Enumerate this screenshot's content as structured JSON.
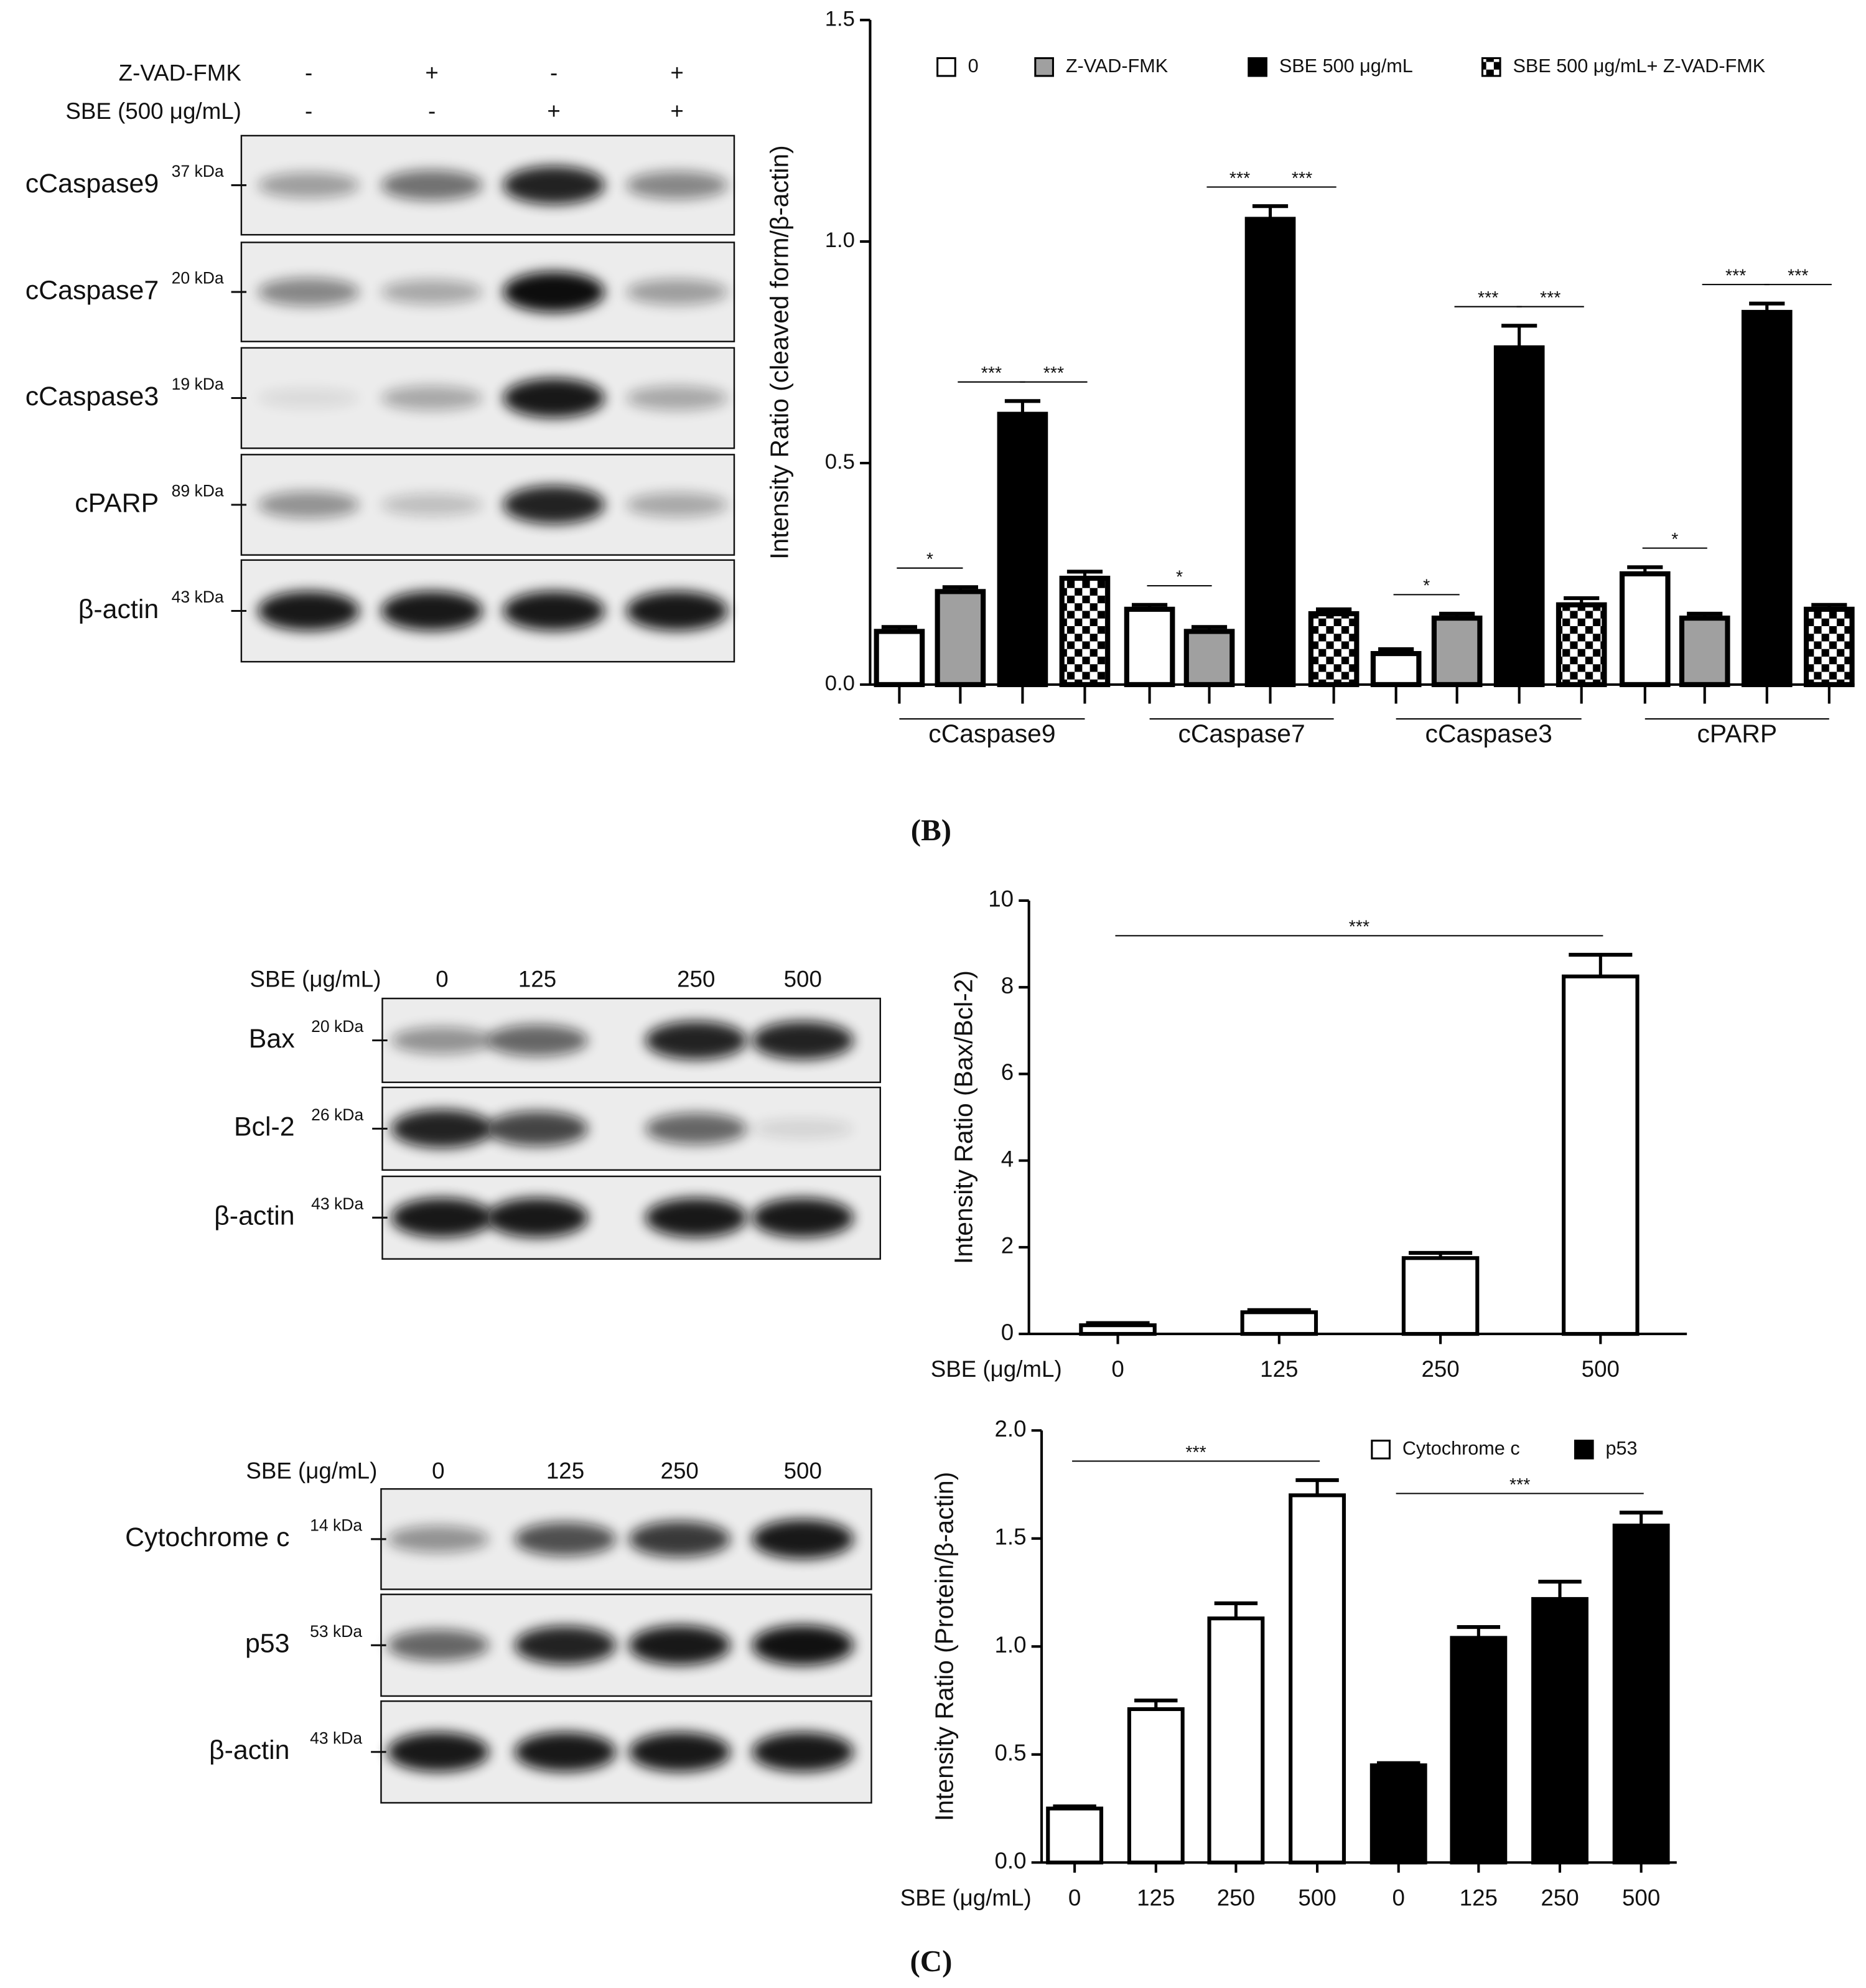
{
  "chart_data": [
    {
      "type": "bar",
      "ylabel": "Intensity Ratio (cleaved form/β-actin)",
      "categories": [
        "cCaspase9",
        "cCaspase7",
        "cCaspase3",
        "cPARP"
      ],
      "series": [
        {
          "name": "0",
          "color": "#ffffff",
          "values": [
            0.12,
            0.17,
            0.07,
            0.25
          ],
          "errors": [
            0.01,
            0.01,
            0.01,
            0.015
          ]
        },
        {
          "name": "Z-VAD-FMK",
          "color": "#a0a0a0",
          "values": [
            0.21,
            0.12,
            0.15,
            0.15
          ],
          "errors": [
            0.01,
            0.01,
            0.01,
            0.01
          ]
        },
        {
          "name": "SBE 500 μg/mL",
          "color": "#000000",
          "values": [
            0.61,
            1.05,
            0.76,
            0.84
          ],
          "errors": [
            0.03,
            0.03,
            0.05,
            0.02
          ]
        },
        {
          "name": "SBE 500 μg/mL+ Z-VAD-FMK",
          "color": "#000000",
          "hatch": "checkerboard",
          "values": [
            0.24,
            0.16,
            0.18,
            0.17
          ],
          "errors": [
            0.015,
            0.01,
            0.015,
            0.01
          ]
        }
      ],
      "ylim": [
        0,
        1.5
      ],
      "yticks": [
        {
          "value": 0,
          "label": "0.0"
        },
        {
          "value": 0.5,
          "label": "0.5"
        },
        {
          "value": 1,
          "label": "1.0"
        },
        {
          "value": 1.5,
          "label": "1.5"
        }
      ],
      "legend": "top",
      "annotations": [
        {
          "text": "*",
          "category": "cCaspase9",
          "series": [
            "0",
            "Z-VAD-FMK"
          ]
        },
        {
          "text": "***",
          "category": "cCaspase9",
          "series": [
            "Z-VAD-FMK",
            "SBE 500 μg/mL"
          ]
        },
        {
          "text": "***",
          "category": "cCaspase9",
          "series": [
            "SBE 500 μg/mL",
            "SBE 500 μg/mL+ Z-VAD-FMK"
          ]
        },
        {
          "text": "*",
          "category": "cCaspase7",
          "series": [
            "0",
            "Z-VAD-FMK"
          ]
        },
        {
          "text": "***",
          "category": "cCaspase7",
          "series": [
            "Z-VAD-FMK",
            "SBE 500 μg/mL"
          ]
        },
        {
          "text": "***",
          "category": "cCaspase7",
          "series": [
            "SBE 500 μg/mL",
            "SBE 500 μg/mL+ Z-VAD-FMK"
          ]
        },
        {
          "text": "*",
          "category": "cCaspase3",
          "series": [
            "0",
            "Z-VAD-FMK"
          ]
        },
        {
          "text": "***",
          "category": "cCaspase3",
          "series": [
            "Z-VAD-FMK",
            "SBE 500 μg/mL"
          ]
        },
        {
          "text": "***",
          "category": "cCaspase3",
          "series": [
            "SBE 500 μg/mL",
            "SBE 500 μg/mL+ Z-VAD-FMK"
          ]
        },
        {
          "text": "*",
          "category": "cPARP",
          "series": [
            "0",
            "Z-VAD-FMK"
          ]
        },
        {
          "text": "***",
          "category": "cPARP",
          "series": [
            "Z-VAD-FMK",
            "SBE 500 μg/mL"
          ]
        },
        {
          "text": "***",
          "category": "cPARP",
          "series": [
            "SBE 500 μg/mL",
            "SBE 500 μg/mL+ Z-VAD-FMK"
          ]
        }
      ]
    },
    {
      "type": "bar",
      "ylabel": "Intensity Ratio (Bax/Bcl-2)",
      "xlabel": "SBE (μg/mL)",
      "categories": [
        "0",
        "125",
        "250",
        "500"
      ],
      "values": [
        0.2,
        0.5,
        1.75,
        8.25
      ],
      "errors": [
        0.05,
        0.05,
        0.12,
        0.5
      ],
      "color": "#ffffff",
      "ylim": [
        0,
        10
      ],
      "yticks": [
        0,
        2,
        4,
        6,
        8,
        10
      ],
      "annotations": [
        {
          "text": "***",
          "categories": [
            "0",
            "500"
          ]
        }
      ]
    },
    {
      "type": "bar",
      "ylabel": "Intensity Ratio (Protein/β-actin)",
      "xlabel": "SBE (μg/mL)",
      "categories": [
        "0",
        "125",
        "250",
        "500"
      ],
      "series": [
        {
          "name": "Cytochrome c",
          "color": "#ffffff",
          "values": [
            0.25,
            0.71,
            1.13,
            1.7
          ],
          "errors": [
            0.01,
            0.04,
            0.07,
            0.07
          ]
        },
        {
          "name": "p53",
          "color": "#000000",
          "values": [
            0.45,
            1.04,
            1.22,
            1.56
          ],
          "errors": [
            0.01,
            0.05,
            0.08,
            0.06
          ]
        }
      ],
      "ylim": [
        0,
        2
      ],
      "yticks": [
        {
          "value": 0,
          "label": "0.0"
        },
        {
          "value": 0.5,
          "label": "0.5"
        },
        {
          "value": 1,
          "label": "1.0"
        },
        {
          "value": 1.5,
          "label": "1.5"
        },
        {
          "value": 2,
          "label": "2.0"
        }
      ],
      "legend": "top",
      "annotations": [
        {
          "text": "***",
          "series": "Cytochrome c",
          "categories": [
            "0",
            "500"
          ]
        },
        {
          "text": "***",
          "series": "p53",
          "categories": [
            "0",
            "500"
          ]
        }
      ]
    }
  ],
  "blots": [
    {
      "header": [
        {
          "label": "Z-VAD-FMK",
          "lanes": [
            "-",
            "+",
            "-",
            "+"
          ]
        },
        {
          "label": "SBE (500 μg/mL)",
          "lanes": [
            "-",
            "-",
            "+",
            "+"
          ]
        }
      ],
      "rows": [
        {
          "name": "cCaspase9",
          "size": "37 kDa"
        },
        {
          "name": "cCaspase7",
          "size": "20 kDa"
        },
        {
          "name": "cCaspase3",
          "size": "19 kDa"
        },
        {
          "name": "cPARP",
          "size": "89 kDa"
        },
        {
          "name": "β-actin",
          "size": "43 kDa"
        }
      ]
    },
    {
      "header": [
        {
          "label": "SBE (μg/mL)",
          "lanes": [
            "0",
            "125",
            "250",
            "500"
          ]
        }
      ],
      "rows": [
        {
          "name": "Bax",
          "size": "20 kDa"
        },
        {
          "name": "Bcl-2",
          "size": "26 kDa"
        },
        {
          "name": "β-actin",
          "size": "43 kDa"
        }
      ]
    },
    {
      "header": [
        {
          "label": "SBE (μg/mL)",
          "lanes": [
            "0",
            "125",
            "250",
            "500"
          ]
        }
      ],
      "rows": [
        {
          "name": "Cytochrome c",
          "size": "14 kDa"
        },
        {
          "name": "p53",
          "size": "53 kDa"
        },
        {
          "name": "β-actin",
          "size": "43 kDa"
        }
      ]
    }
  ],
  "panels": [
    "(B)",
    "(C)"
  ]
}
